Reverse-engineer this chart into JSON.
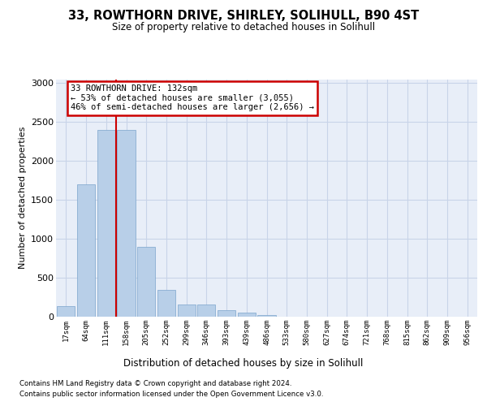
{
  "title1": "33, ROWTHORN DRIVE, SHIRLEY, SOLIHULL, B90 4ST",
  "title2": "Size of property relative to detached houses in Solihull",
  "xlabel": "Distribution of detached houses by size in Solihull",
  "ylabel": "Number of detached properties",
  "annotation_line1": "33 ROWTHORN DRIVE: 132sqm",
  "annotation_line2": "← 53% of detached houses are smaller (3,055)",
  "annotation_line3": "46% of semi-detached houses are larger (2,656) →",
  "footnote1": "Contains HM Land Registry data © Crown copyright and database right 2024.",
  "footnote2": "Contains public sector information licensed under the Open Government Licence v3.0.",
  "bar_labels": [
    "17sqm",
    "64sqm",
    "111sqm",
    "158sqm",
    "205sqm",
    "252sqm",
    "299sqm",
    "346sqm",
    "393sqm",
    "439sqm",
    "486sqm",
    "533sqm",
    "580sqm",
    "627sqm",
    "674sqm",
    "721sqm",
    "768sqm",
    "815sqm",
    "862sqm",
    "909sqm",
    "956sqm"
  ],
  "bar_values": [
    140,
    1700,
    2400,
    2400,
    900,
    340,
    155,
    155,
    85,
    55,
    25,
    5,
    0,
    0,
    0,
    0,
    0,
    0,
    0,
    0,
    0
  ],
  "bar_color": "#b8cfe8",
  "bar_edge_color": "#7ba4cc",
  "grid_color": "#c8d4e8",
  "vline_color": "#cc0000",
  "vline_x": 2.5,
  "annotation_box_edgecolor": "#cc0000",
  "ylim_max": 3050,
  "yticks": [
    0,
    500,
    1000,
    1500,
    2000,
    2500,
    3000
  ],
  "plot_bg_color": "#e8eef8",
  "fig_bg_color": "#ffffff"
}
